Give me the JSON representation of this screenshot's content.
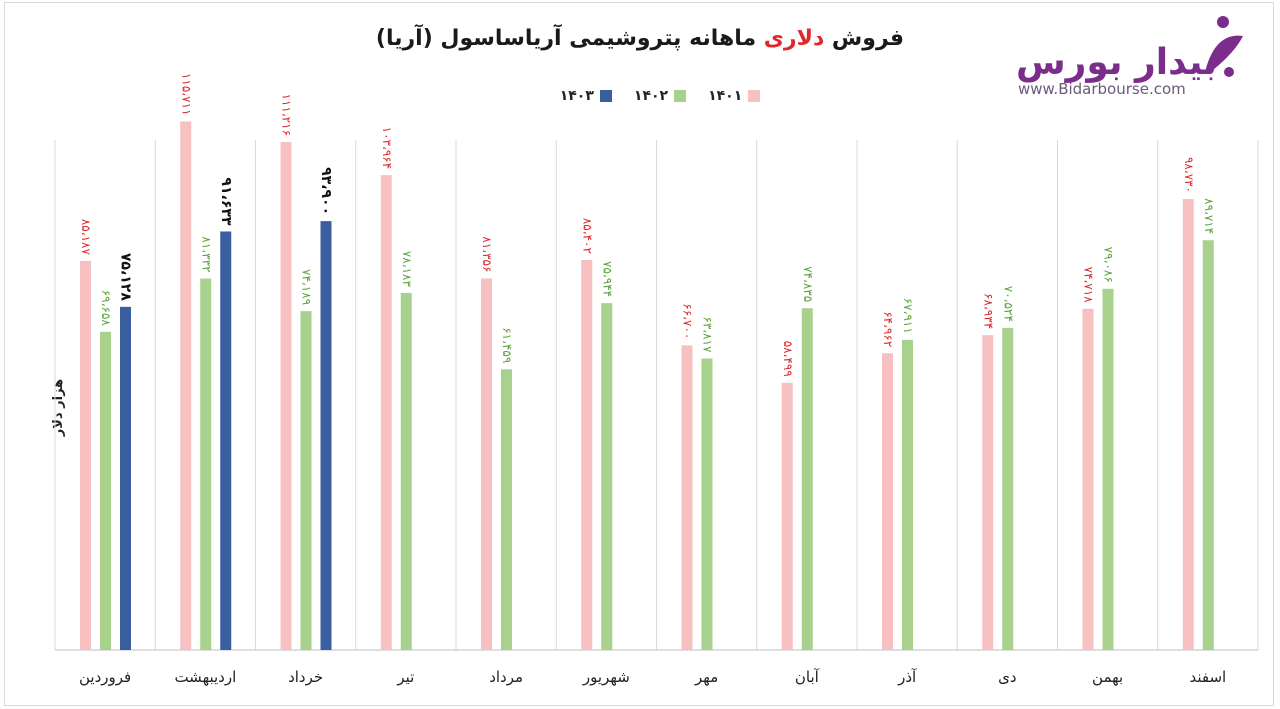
{
  "title": {
    "before": "فروش ",
    "highlight": "دلاری",
    "after": " ماهانه پتروشیمی آریاساسول (آریا)"
  },
  "logo": {
    "name": "بیدار بورس",
    "url": "www.Bidarbourse.com"
  },
  "chart_data": {
    "type": "bar",
    "title": "فروش دلاری ماهانه پتروشیمی آریاساسول (آریا)",
    "ylabel": "هزار دلار",
    "xlabel": "",
    "ylim": [
      0,
      130000
    ],
    "grid": false,
    "legend_position": "top-center",
    "categories": [
      "فروردین",
      "اردیبهشت",
      "خرداد",
      "تیر",
      "مرداد",
      "شهریور",
      "مهر",
      "آبان",
      "آذر",
      "دی",
      "بهمن",
      "اسفند"
    ],
    "series": [
      {
        "name": "۱۴۰۱",
        "color": "#f7c1c1",
        "label_color": "#e0282b",
        "values": [
          85187,
          115711,
          111216,
          103964,
          81356,
          85402,
          66700,
          58499,
          64962,
          68934,
          74718,
          98730
        ],
        "labels": [
          "۸۵،۱۸۷",
          "۱۱۵،۷۱۱",
          "۱۱۱،۲۱۶",
          "۱۰۳،۹۶۴",
          "۸۱،۳۵۶",
          "۸۵،۴۰۲",
          "۶۶،۷۰۰",
          "۵۸،۴۹۹",
          "۶۴،۹۶۲",
          "۶۸،۹۳۴",
          "۷۴،۷۱۸",
          "۹۸،۷۳۰"
        ]
      },
      {
        "name": "۱۴۰۲",
        "color": "#a9d18e",
        "label_color": "#5aa33a",
        "values": [
          69658,
          81332,
          74189,
          78183,
          61459,
          75944,
          63817,
          74835,
          67911,
          70524,
          79086,
          89714
        ],
        "labels": [
          "۶۹،۶۵۸",
          "۸۱،۳۳۲",
          "۷۴،۱۸۹",
          "۷۸،۱۸۳",
          "۶۱،۴۵۹",
          "۷۵،۹۴۴",
          "۶۳،۸۱۷",
          "۷۴،۸۳۵",
          "۶۷،۹۱۱",
          "۷۰،۵۲۴",
          "۷۹،۰۸۶",
          "۸۹،۷۱۴"
        ]
      },
      {
        "name": "۱۴۰۳",
        "color": "#3a5fa0",
        "label_color": "#111111",
        "values": [
          75128,
          91633,
          93900,
          null,
          null,
          null,
          null,
          null,
          null,
          null,
          null,
          null
        ],
        "labels": [
          "۷۵،۱۲۸",
          "۹۱،۶۳۳",
          "۹۳،۹۰۰",
          "",
          "",
          "",
          "",
          "",
          "",
          "",
          "",
          ""
        ]
      }
    ]
  }
}
